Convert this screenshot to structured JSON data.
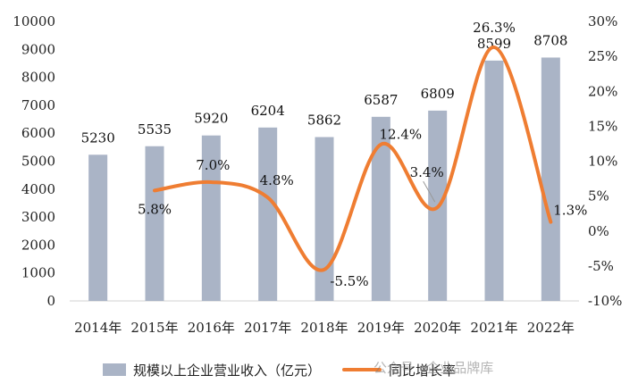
{
  "chart_data": {
    "type": "bar+line",
    "categories": [
      "2014年",
      "2015年",
      "2016年",
      "2017年",
      "2018年",
      "2019年",
      "2020年",
      "2021年",
      "2022年"
    ],
    "series": [
      {
        "name": "规模以上企业营业收入（亿元）",
        "axis": "left",
        "type": "bar",
        "values": [
          5230,
          5535,
          5920,
          6204,
          5862,
          6587,
          6809,
          8599,
          8708
        ],
        "labels": [
          "5230",
          "5535",
          "5920",
          "6204",
          "5862",
          "6587",
          "6809",
          "8599",
          "8708"
        ]
      },
      {
        "name": "同比增长率",
        "axis": "right",
        "type": "line",
        "values": [
          null,
          5.8,
          7.0,
          4.8,
          -5.5,
          12.4,
          3.4,
          26.3,
          1.3
        ],
        "labels": [
          "",
          "5.8%",
          "7.0%",
          "4.8%",
          "-5.5%",
          "12.4%",
          "3.4%",
          "26.3%",
          "1.3%"
        ]
      }
    ],
    "yleft": {
      "min": 0,
      "max": 10000,
      "step": 1000,
      "ticks": [
        "0",
        "1000",
        "2000",
        "3000",
        "4000",
        "5000",
        "6000",
        "7000",
        "8000",
        "9000",
        "10000"
      ]
    },
    "yright": {
      "min": -10,
      "max": 30,
      "step": 5,
      "ticks": [
        "-10%",
        "-5%",
        "0%",
        "5%",
        "10%",
        "15%",
        "20%",
        "25%",
        "30%"
      ]
    },
    "colors": {
      "bar": "#aab4c6",
      "line": "#ef7d32"
    }
  },
  "legend": {
    "bar_label": "规模以上企业营业收入（亿元）",
    "line_label": "同比增长率"
  },
  "watermark": "公众号 · 企业品牌库"
}
